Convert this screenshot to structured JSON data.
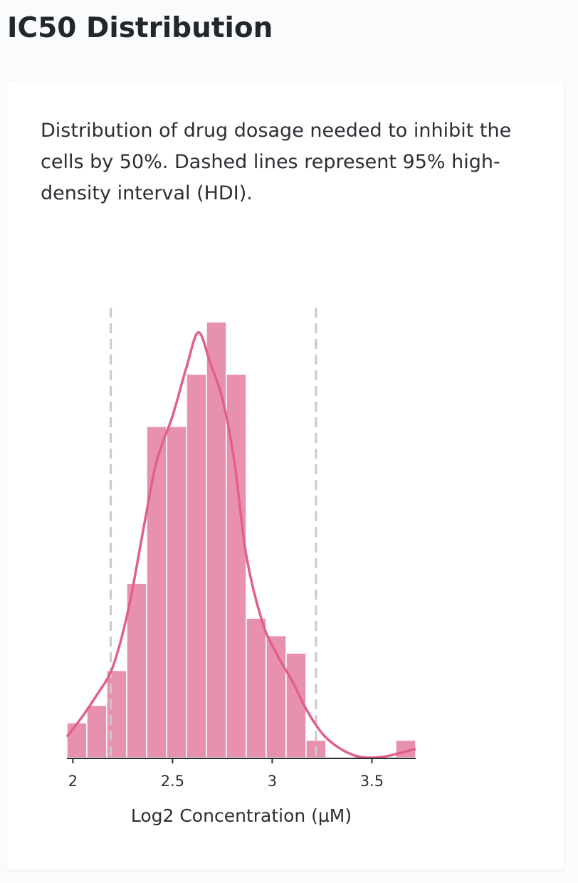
{
  "page": {
    "title": "IC50 Distribution",
    "description": "Distribution of drug dosage needed to inhibit the cells by 50%. Dashed lines represent 95% high-density interval (HDI)."
  },
  "chart_data": {
    "type": "bar",
    "title": "",
    "xlabel": "Log2 Concentration (µM)",
    "ylabel": "",
    "xlim": [
      1.97,
      3.72
    ],
    "ylim": [
      0,
      25
    ],
    "x_ticks": [
      2,
      2.5,
      3,
      3.5
    ],
    "x_tick_labels": [
      "2",
      "2.5",
      "3",
      "3.5"
    ],
    "bins": [
      {
        "x0": 1.97,
        "x1": 2.07,
        "count": 2
      },
      {
        "x0": 2.07,
        "x1": 2.17,
        "count": 3
      },
      {
        "x0": 2.17,
        "x1": 2.27,
        "count": 5
      },
      {
        "x0": 2.27,
        "x1": 2.37,
        "count": 10
      },
      {
        "x0": 2.37,
        "x1": 2.47,
        "count": 19
      },
      {
        "x0": 2.47,
        "x1": 2.57,
        "count": 19
      },
      {
        "x0": 2.57,
        "x1": 2.67,
        "count": 22
      },
      {
        "x0": 2.67,
        "x1": 2.77,
        "count": 25
      },
      {
        "x0": 2.77,
        "x1": 2.87,
        "count": 22
      },
      {
        "x0": 2.87,
        "x1": 2.97,
        "count": 8
      },
      {
        "x0": 2.97,
        "x1": 3.07,
        "count": 7
      },
      {
        "x0": 3.07,
        "x1": 3.17,
        "count": 6
      },
      {
        "x0": 3.17,
        "x1": 3.27,
        "count": 1
      },
      {
        "x0": 3.62,
        "x1": 3.72,
        "count": 1
      }
    ],
    "density_curve": [
      [
        1.97,
        1.2
      ],
      [
        2.05,
        2.4
      ],
      [
        2.12,
        3.6
      ],
      [
        2.2,
        5.2
      ],
      [
        2.28,
        8.6
      ],
      [
        2.36,
        13.5
      ],
      [
        2.42,
        17.0
      ],
      [
        2.5,
        19.6
      ],
      [
        2.57,
        22.4
      ],
      [
        2.63,
        24.4
      ],
      [
        2.69,
        22.6
      ],
      [
        2.75,
        20.6
      ],
      [
        2.81,
        17.0
      ],
      [
        2.87,
        11.6
      ],
      [
        2.95,
        7.8
      ],
      [
        3.02,
        6.0
      ],
      [
        3.1,
        4.4
      ],
      [
        3.17,
        2.8
      ],
      [
        3.25,
        1.4
      ],
      [
        3.33,
        0.6
      ],
      [
        3.42,
        0.1
      ],
      [
        3.5,
        0.0
      ],
      [
        3.58,
        0.1
      ],
      [
        3.65,
        0.3
      ],
      [
        3.72,
        0.5
      ]
    ],
    "hdi": [
      2.19,
      3.22
    ],
    "colors": {
      "bars": "#e891ad",
      "curve": "#e0608d",
      "hdi_line": "#cfc6cc",
      "axis": "#2b2e33"
    }
  }
}
